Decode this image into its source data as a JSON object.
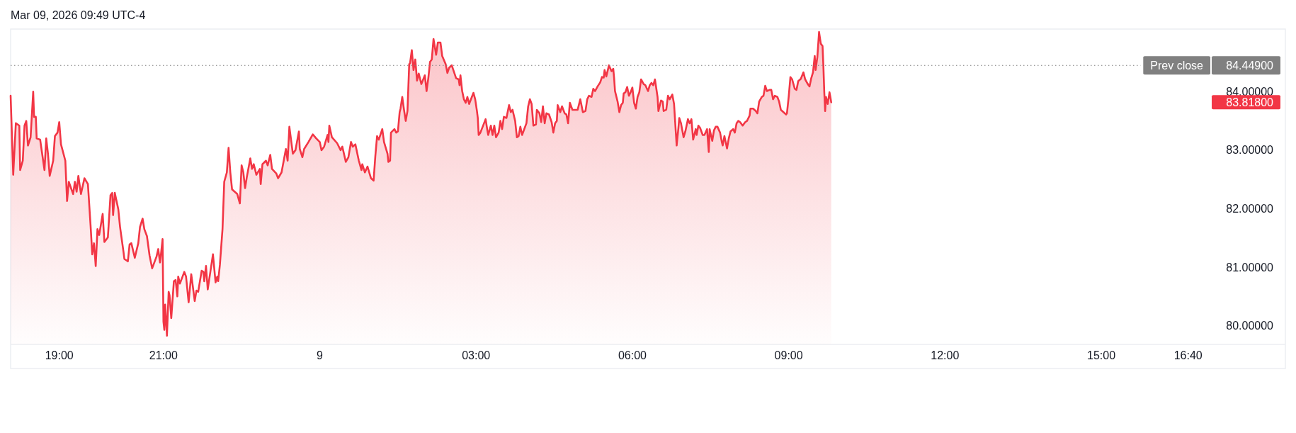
{
  "chart_data": {
    "type": "area",
    "annotations": [
      "Mar 09, 2026 09:49 UTC-4"
    ],
    "color": "#f23645",
    "x": [
      "2026-03-08T18:04",
      "2026-03-08T18:07",
      "2026-03-08T18:10",
      "2026-03-08T18:14",
      "2026-03-08T18:15",
      "2026-03-08T18:18",
      "2026-03-08T18:20",
      "2026-03-08T18:22",
      "2026-03-08T18:24",
      "2026-03-08T18:27",
      "2026-03-08T18:30",
      "2026-03-08T18:31",
      "2026-03-08T18:33",
      "2026-03-08T18:34",
      "2026-03-08T18:38",
      "2026-03-08T18:43",
      "2026-03-08T18:45",
      "2026-03-08T18:47",
      "2026-03-08T18:49",
      "2026-03-08T18:53",
      "2026-03-08T18:55",
      "2026-03-08T18:58",
      "2026-03-08T19:00",
      "2026-03-08T19:02",
      "2026-03-08T19:07",
      "2026-03-08T19:09",
      "2026-03-08T19:11",
      "2026-03-08T19:16",
      "2026-03-08T19:18",
      "2026-03-08T19:20",
      "2026-03-08T19:22",
      "2026-03-08T19:25",
      "2026-03-08T19:29",
      "2026-03-08T19:33",
      "2026-03-08T19:36",
      "2026-03-08T19:38",
      "2026-03-08T19:40",
      "2026-03-08T19:42",
      "2026-03-08T19:44",
      "2026-03-08T19:46",
      "2026-03-08T19:50",
      "2026-03-08T19:52",
      "2026-03-08T19:56",
      "2026-03-08T19:59",
      "2026-03-08T20:01",
      "2026-03-08T20:02",
      "2026-03-08T20:04",
      "2026-03-08T20:08",
      "2026-03-08T20:10",
      "2026-03-08T20:14",
      "2026-03-08T20:15",
      "2026-03-08T20:19",
      "2026-03-08T20:21",
      "2026-03-08T20:23",
      "2026-03-08T20:27",
      "2026-03-08T20:31",
      "2026-03-08T20:33",
      "2026-03-08T20:36",
      "2026-03-08T20:38",
      "2026-03-08T20:41",
      "2026-03-08T20:44",
      "2026-03-08T20:47",
      "2026-03-08T20:52",
      "2026-03-08T20:54",
      "2026-03-08T20:56",
      "2026-03-08T20:57",
      "2026-03-08T20:59",
      "2026-03-08T21:00",
      "2026-03-08T21:01",
      "2026-03-08T21:02",
      "2026-03-08T21:04",
      "2026-03-08T21:06",
      "2026-03-08T21:07",
      "2026-03-08T21:09",
      "2026-03-08T21:12",
      "2026-03-08T21:14",
      "2026-03-08T21:16",
      "2026-03-08T21:17",
      "2026-03-08T21:19",
      "2026-03-08T21:24",
      "2026-03-08T21:26",
      "2026-03-08T21:29",
      "2026-03-08T21:32",
      "2026-03-08T21:36",
      "2026-03-08T21:38",
      "2026-03-08T21:40",
      "2026-03-08T21:44",
      "2026-03-08T21:46",
      "2026-03-08T21:47",
      "2026-03-08T21:49",
      "2026-03-08T21:51",
      "2026-03-08T21:54",
      "2026-03-08T21:57",
      "2026-03-08T22:00",
      "2026-03-08T22:02",
      "2026-03-08T22:03",
      "2026-03-08T22:05",
      "2026-03-08T22:08",
      "2026-03-08T22:10",
      "2026-03-08T22:13",
      "2026-03-08T22:15",
      "2026-03-08T22:17",
      "2026-03-08T22:19",
      "2026-03-08T22:25",
      "2026-03-08T22:28",
      "2026-03-08T22:30",
      "2026-03-08T22:32",
      "2026-03-08T22:34",
      "2026-03-08T22:36",
      "2026-03-08T22:40",
      "2026-03-08T22:42",
      "2026-03-08T22:44",
      "2026-03-08T22:47",
      "2026-03-08T22:51",
      "2026-03-08T22:52",
      "2026-03-08T22:54",
      "2026-03-08T22:58",
      "2026-03-08T23:00",
      "2026-03-08T23:03",
      "2026-03-08T23:05",
      "2026-03-08T23:10",
      "2026-03-08T23:12",
      "2026-03-08T23:16",
      "2026-03-08T23:21",
      "2026-03-08T23:23",
      "2026-03-08T23:25",
      "2026-03-08T23:29",
      "2026-03-08T23:32",
      "2026-03-08T23:36",
      "2026-03-08T23:37",
      "2026-03-08T23:40",
      "2026-03-08T23:42",
      "2026-03-08T23:47",
      "2026-03-08T23:52",
      "2026-03-08T23:56",
      "2026-03-09T00:00",
      "2026-03-09T00:02",
      "2026-03-09T00:05",
      "2026-03-09T00:09",
      "2026-03-09T00:10",
      "2026-03-09T00:11",
      "2026-03-09T00:14",
      "2026-03-09T00:20",
      "2026-03-09T00:24",
      "2026-03-09T00:26",
      "2026-03-09T00:30",
      "2026-03-09T00:33",
      "2026-03-09T00:36",
      "2026-03-09T00:38",
      "2026-03-09T00:41",
      "2026-03-09T00:45",
      "2026-03-09T00:48",
      "2026-03-09T00:49",
      "2026-03-09T00:52",
      "2026-03-09T00:55",
      "2026-03-09T00:59",
      "2026-03-09T01:02",
      "2026-03-09T01:04",
      "2026-03-09T01:06",
      "2026-03-09T01:08",
      "2026-03-09T01:12",
      "2026-03-09T01:14",
      "2026-03-09T01:18",
      "2026-03-09T01:19",
      "2026-03-09T01:21",
      "2026-03-09T01:22",
      "2026-03-09T01:26",
      "2026-03-09T01:28",
      "2026-03-09T01:30",
      "2026-03-09T01:32",
      "2026-03-09T01:33",
      "2026-03-09T01:35",
      "2026-03-09T01:37",
      "2026-03-09T01:39",
      "2026-03-09T01:41",
      "2026-03-09T01:43",
      "2026-03-09T01:44",
      "2026-03-09T01:46",
      "2026-03-09T01:48",
      "2026-03-09T01:50",
      "2026-03-09T01:52",
      "2026-03-09T01:54",
      "2026-03-09T01:57",
      "2026-03-09T02:01",
      "2026-03-09T02:03",
      "2026-03-09T02:05",
      "2026-03-09T02:07",
      "2026-03-09T02:09",
      "2026-03-09T02:11",
      "2026-03-09T02:13",
      "2026-03-09T02:14",
      "2026-03-09T02:16",
      "2026-03-09T02:19",
      "2026-03-09T02:21",
      "2026-03-09T02:25",
      "2026-03-09T02:27",
      "2026-03-09T02:29",
      "2026-03-09T02:32",
      "2026-03-09T02:37",
      "2026-03-09T02:40",
      "2026-03-09T02:41",
      "2026-03-09T02:42",
      "2026-03-09T02:44",
      "2026-03-09T02:46",
      "2026-03-09T02:48",
      "2026-03-09T02:50",
      "2026-03-09T02:52",
      "2026-03-09T02:57",
      "2026-03-09T02:59",
      "2026-03-09T03:01",
      "2026-03-09T03:02",
      "2026-03-09T03:03",
      "2026-03-09T03:05",
      "2026-03-09T03:11",
      "2026-03-09T03:13",
      "2026-03-09T03:14",
      "2026-03-09T03:17",
      "2026-03-09T03:19",
      "2026-03-09T03:21",
      "2026-03-09T03:23",
      "2026-03-09T03:26",
      "2026-03-09T03:28",
      "2026-03-09T03:30",
      "2026-03-09T03:32",
      "2026-03-09T03:35",
      "2026-03-09T03:38",
      "2026-03-09T03:40",
      "2026-03-09T03:42",
      "2026-03-09T03:45",
      "2026-03-09T03:47",
      "2026-03-09T03:49",
      "2026-03-09T03:51",
      "2026-03-09T03:53",
      "2026-03-09T03:56",
      "2026-03-09T03:58",
      "2026-03-09T04:00",
      "2026-03-09T04:02",
      "2026-03-09T04:04",
      "2026-03-09T04:06",
      "2026-03-09T04:09",
      "2026-03-09T04:10",
      "2026-03-09T04:13",
      "2026-03-09T04:15",
      "2026-03-09T04:17",
      "2026-03-09T04:19",
      "2026-03-09T04:21",
      "2026-03-09T04:24",
      "2026-03-09T04:27",
      "2026-03-09T04:29",
      "2026-03-09T04:31",
      "2026-03-09T04:33",
      "2026-03-09T04:34",
      "2026-03-09T04:37",
      "2026-03-09T04:39",
      "2026-03-09T04:42",
      "2026-03-09T04:44",
      "2026-03-09T04:46",
      "2026-03-09T04:48",
      "2026-03-09T04:51",
      "2026-03-09T04:57",
      "2026-03-09T05:00",
      "2026-03-09T05:03",
      "2026-03-09T05:06",
      "2026-03-09T05:08",
      "2026-03-09T05:10",
      "2026-03-09T05:13",
      "2026-03-09T05:15",
      "2026-03-09T05:17",
      "2026-03-09T05:20",
      "2026-03-09T05:23",
      "2026-03-09T05:25",
      "2026-03-09T05:27",
      "2026-03-09T05:28",
      "2026-03-09T05:30",
      "2026-03-09T05:33",
      "2026-03-09T05:36",
      "2026-03-09T05:38",
      "2026-03-09T05:39",
      "2026-03-09T05:40",
      "2026-03-09T05:43",
      "2026-03-09T05:45",
      "2026-03-09T05:47",
      "2026-03-09T05:49",
      "2026-03-09T05:50",
      "2026-03-09T05:52",
      "2026-03-09T05:54",
      "2026-03-09T05:56",
      "2026-03-09T05:58",
      "2026-03-09T06:00",
      "2026-03-09T06:02",
      "2026-03-09T06:04",
      "2026-03-09T06:06",
      "2026-03-09T06:08",
      "2026-03-09T06:10",
      "2026-03-09T06:13",
      "2026-03-09T06:15",
      "2026-03-09T06:18",
      "2026-03-09T06:20",
      "2026-03-09T06:22",
      "2026-03-09T06:24",
      "2026-03-09T06:26",
      "2026-03-09T06:29",
      "2026-03-09T06:30",
      "2026-03-09T06:33",
      "2026-03-09T06:35",
      "2026-03-09T06:36",
      "2026-03-09T06:39",
      "2026-03-09T06:41",
      "2026-03-09T06:43",
      "2026-03-09T06:46",
      "2026-03-09T06:48",
      "2026-03-09T06:49",
      "2026-03-09T06:51",
      "2026-03-09T06:53",
      "2026-03-09T06:54",
      "2026-03-09T06:56",
      "2026-03-09T06:59",
      "2026-03-09T07:01",
      "2026-03-09T07:04",
      "2026-03-09T07:06",
      "2026-03-09T07:08",
      "2026-03-09T07:10",
      "2026-03-09T07:13",
      "2026-03-09T07:14",
      "2026-03-09T07:16",
      "2026-03-09T07:18",
      "2026-03-09T07:21",
      "2026-03-09T07:23",
      "2026-03-09T07:26",
      "2026-03-09T07:28",
      "2026-03-09T07:29",
      "2026-03-09T07:32",
      "2026-03-09T07:34",
      "2026-03-09T07:36",
      "2026-03-09T07:38",
      "2026-03-09T07:41",
      "2026-03-09T07:43",
      "2026-03-09T07:44",
      "2026-03-09T07:46",
      "2026-03-09T07:49",
      "2026-03-09T07:51",
      "2026-03-09T07:53",
      "2026-03-09T07:56",
      "2026-03-09T07:58",
      "2026-03-09T08:00",
      "2026-03-09T08:02",
      "2026-03-09T08:04",
      "2026-03-09T08:07",
      "2026-03-09T08:10",
      "2026-03-09T08:12",
      "2026-03-09T08:15",
      "2026-03-09T08:16",
      "2026-03-09T08:19",
      "2026-03-09T08:22",
      "2026-03-09T08:24",
      "2026-03-09T08:26",
      "2026-03-09T08:29",
      "2026-03-09T08:31",
      "2026-03-09T08:33",
      "2026-03-09T08:35",
      "2026-03-09T08:38",
      "2026-03-09T08:40",
      "2026-03-09T08:42",
      "2026-03-09T08:44",
      "2026-03-09T08:47",
      "2026-03-09T08:49",
      "2026-03-09T08:51",
      "2026-03-09T08:54",
      "2026-03-09T08:57",
      "2026-03-09T08:58",
      "2026-03-09T09:00",
      "2026-03-09T09:02",
      "2026-03-09T09:04",
      "2026-03-09T09:07",
      "2026-03-09T09:09",
      "2026-03-09T09:11",
      "2026-03-09T09:14",
      "2026-03-09T09:17",
      "2026-03-09T09:19",
      "2026-03-09T09:22",
      "2026-03-09T09:24",
      "2026-03-09T09:26",
      "2026-03-09T09:28",
      "2026-03-09T09:30",
      "2026-03-09T09:31",
      "2026-03-09T09:33",
      "2026-03-09T09:35",
      "2026-03-09T09:37",
      "2026-03-09T09:39",
      "2026-03-09T09:40",
      "2026-03-09T09:41",
      "2026-03-09T09:42",
      "2026-03-09T09:43",
      "2026-03-09T09:45",
      "2026-03-09T09:47",
      "2026-03-09T09:48",
      "2026-03-09T09:49"
    ],
    "values": [
      83.93,
      82.58,
      83.46,
      83.42,
      82.66,
      82.82,
      83.42,
      83.5,
      83.08,
      83.22,
      84.0,
      83.57,
      83.57,
      83.2,
      83.18,
      82.66,
      83.2,
      82.94,
      82.56,
      82.82,
      83.24,
      83.3,
      83.48,
      83.1,
      82.82,
      82.13,
      82.46,
      82.25,
      82.46,
      82.29,
      82.56,
      82.25,
      82.52,
      82.42,
      81.73,
      81.22,
      81.41,
      81.02,
      81.65,
      81.55,
      81.91,
      81.43,
      81.51,
      82.23,
      82.27,
      81.89,
      82.27,
      81.99,
      81.69,
      81.26,
      81.14,
      81.1,
      81.39,
      81.41,
      81.16,
      81.41,
      81.69,
      81.83,
      81.65,
      81.53,
      81.2,
      80.98,
      81.18,
      81.31,
      81.08,
      81.2,
      81.48,
      80.07,
      79.93,
      80.36,
      79.83,
      80.58,
      80.52,
      80.13,
      80.76,
      80.78,
      80.5,
      80.84,
      80.72,
      80.92,
      80.84,
      80.4,
      80.88,
      80.42,
      80.6,
      80.58,
      80.94,
      80.92,
      80.76,
      81.02,
      80.62,
      80.92,
      81.22,
      80.74,
      80.84,
      80.76,
      81.04,
      81.65,
      82.46,
      82.62,
      83.04,
      82.62,
      82.33,
      82.25,
      82.09,
      82.74,
      82.62,
      82.35,
      82.54,
      82.86,
      82.68,
      82.76,
      82.58,
      82.68,
      82.42,
      82.76,
      82.82,
      82.74,
      82.92,
      82.68,
      82.6,
      82.52,
      82.62,
      83.02,
      82.82,
      83.4,
      82.94,
      83.0,
      83.32,
      83.02,
      82.88,
      83.02,
      83.14,
      83.27,
      83.2,
      83.14,
      83.0,
      83.06,
      83.26,
      83.14,
      83.42,
      83.22,
      83.12,
      83.0,
      83.06,
      82.8,
      82.88,
      83.14,
      83.06,
      83.1,
      82.82,
      82.66,
      82.76,
      82.62,
      82.72,
      82.52,
      82.48,
      82.9,
      83.24,
      83.18,
      83.36,
      83.14,
      82.94,
      82.8,
      82.82,
      83.3,
      83.36,
      83.3,
      83.32,
      83.65,
      83.71,
      83.91,
      83.69,
      83.5,
      83.67,
      84.47,
      84.49,
      84.71,
      84.37,
      84.55,
      84.19,
      84.31,
      84.13,
      84.28,
      84.01,
      84.23,
      84.51,
      84.55,
      84.9,
      84.72,
      84.63,
      84.84,
      84.84,
      84.61,
      84.47,
      84.32,
      84.41,
      84.45,
      84.23,
      84.21,
      84.11,
      84.28,
      84.01,
      83.87,
      83.81,
      83.91,
      83.79,
      83.98,
      83.87,
      83.67,
      83.55,
      83.26,
      83.3,
      83.53,
      83.34,
      83.26,
      83.42,
      83.26,
      83.42,
      83.22,
      83.3,
      83.5,
      83.36,
      83.57,
      83.55,
      83.77,
      83.65,
      83.69,
      83.5,
      83.22,
      83.24,
      83.4,
      83.26,
      83.38,
      83.46,
      83.75,
      83.87,
      83.79,
      83.42,
      83.44,
      83.69,
      83.63,
      83.48,
      83.75,
      83.46,
      83.63,
      83.61,
      83.48,
      83.3,
      83.46,
      83.5,
      83.77,
      83.65,
      83.75,
      83.63,
      83.61,
      83.46,
      83.81,
      83.69,
      83.69,
      83.87,
      83.65,
      83.67,
      83.87,
      83.93,
      83.91,
      84.05,
      84.01,
      84.09,
      84.16,
      84.25,
      84.24,
      84.37,
      84.26,
      84.45,
      84.35,
      84.39,
      84.23,
      84.01,
      83.83,
      83.65,
      83.77,
      83.81,
      83.97,
      83.99,
      84.08,
      83.93,
      83.99,
      84.07,
      83.81,
      83.71,
      83.91,
      83.99,
      84.21,
      84.13,
      84.11,
      84.01,
      84.11,
      84.15,
      84.11,
      84.21,
      83.91,
      83.67,
      83.85,
      83.83,
      83.67,
      83.69,
      83.93,
      83.87,
      83.95,
      83.79,
      83.55,
      83.08,
      83.38,
      83.55,
      83.46,
      83.22,
      83.32,
      83.53,
      83.46,
      83.53,
      83.18,
      83.36,
      83.26,
      83.42,
      83.38,
      83.26,
      83.26,
      83.36,
      82.97,
      83.36,
      83.16,
      83.34,
      83.4,
      83.4,
      83.3,
      83.14,
      83.08,
      83.24,
      83.03,
      83.2,
      83.32,
      83.36,
      83.3,
      83.46,
      83.5,
      83.48,
      83.42,
      83.48,
      83.5,
      83.59,
      83.71,
      83.71,
      83.67,
      83.63,
      83.83,
      83.91,
      83.93,
      84.1,
      84.01,
      84.03,
      84.03,
      83.87,
      83.93,
      83.91,
      83.83,
      83.69,
      83.65,
      83.61,
      83.63,
      83.91,
      84.25,
      84.21,
      84.05,
      84.03,
      84.18,
      84.22,
      84.33,
      84.21,
      84.13,
      84.09,
      84.23,
      84.33,
      84.61,
      84.37,
      84.59,
      85.02,
      84.82,
      84.78,
      84.43,
      83.99,
      83.67,
      83.91,
      83.79,
      83.99,
      83.91,
      83.818
    ],
    "xlim": [
      "2026-03-08T18:04",
      "2026-03-09T18:32"
    ],
    "xticks": [
      {
        "value": "2026-03-08T19:00",
        "label": "19:00"
      },
      {
        "value": "2026-03-08T21:00",
        "label": "21:00"
      },
      {
        "value": "2026-03-09T00:00",
        "label": "9"
      },
      {
        "value": "2026-03-09T03:00",
        "label": "03:00"
      },
      {
        "value": "2026-03-09T06:00",
        "label": "06:00"
      },
      {
        "value": "2026-03-09T09:00",
        "label": "09:00"
      },
      {
        "value": "2026-03-09T12:00",
        "label": "12:00"
      },
      {
        "value": "2026-03-09T15:00",
        "label": "15:00"
      },
      {
        "value": "2026-03-09T16:40",
        "label": "16:40"
      }
    ],
    "ylim": [
      79.68,
      85.07
    ],
    "yticks": [
      {
        "value": 80,
        "label": "80.00000"
      },
      {
        "value": 81,
        "label": "81.00000"
      },
      {
        "value": 82,
        "label": "82.00000"
      },
      {
        "value": 83,
        "label": "83.00000"
      },
      {
        "value": 83.818,
        "label": "83.81800"
      },
      {
        "value": 84,
        "label": "84.00000"
      },
      {
        "value": 84.449,
        "label": "84.44900"
      }
    ],
    "ref_lines": [
      {
        "axis": "y",
        "value": 84.449,
        "label": "Prev close",
        "color": "#808080",
        "line_style": "dotted"
      }
    ]
  }
}
